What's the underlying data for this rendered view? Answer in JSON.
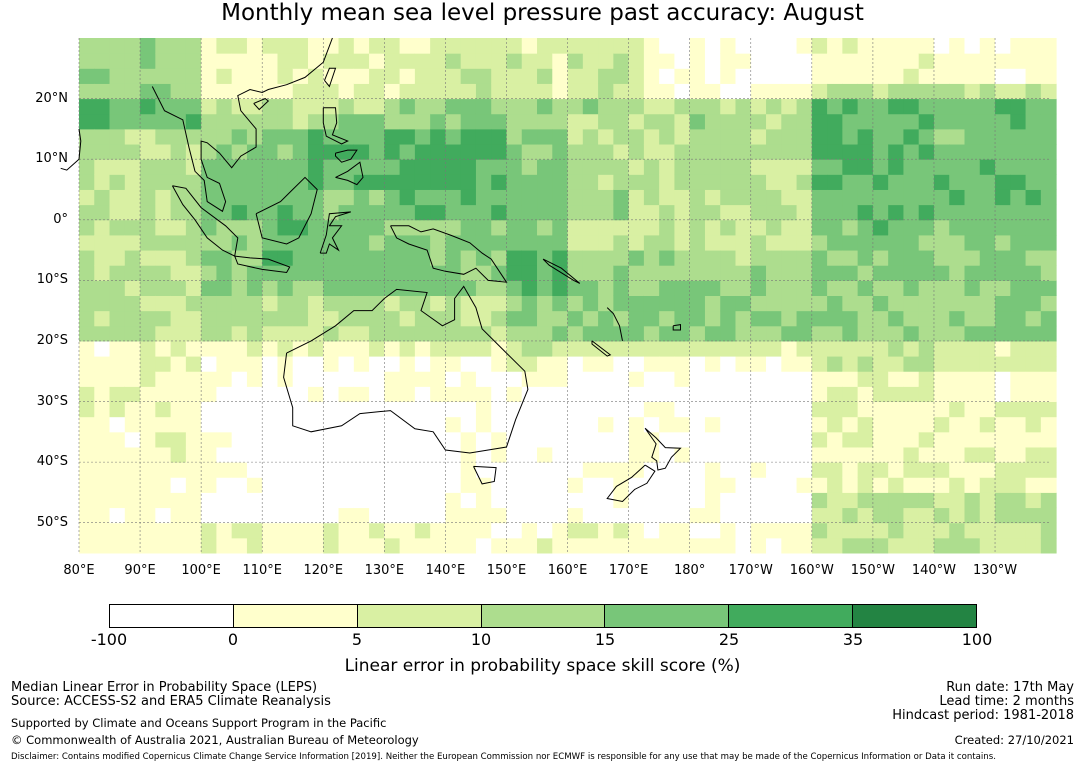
{
  "title": "Monthly mean sea level pressure past accuracy: August",
  "map": {
    "lat_labels": [
      "20°N",
      "10°N",
      "0°",
      "10°S",
      "20°S",
      "30°S",
      "40°S",
      "50°S"
    ],
    "lon_labels": [
      "80°E",
      "90°E",
      "100°E",
      "110°E",
      "120°E",
      "130°E",
      "140°E",
      "150°E",
      "160°E",
      "170°E",
      "180°",
      "170°W",
      "160°W",
      "150°W",
      "140°W",
      "130°W"
    ],
    "extent": {
      "lon_min": 80,
      "lon_max": 239,
      "lat_min": -55,
      "lat_max": 30
    },
    "grid": "on",
    "features": [
      "Indonesia",
      "Philippines",
      "Papua New Guinea",
      "Australia",
      "Tasmania",
      "New Zealand",
      "Pacific islands"
    ]
  },
  "colorbar": {
    "ticks": [
      "-100",
      "0",
      "5",
      "10",
      "15",
      "25",
      "35",
      "100"
    ],
    "colors": [
      "#ffffff",
      "#ffffcc",
      "#d9f0a3",
      "#addd8e",
      "#78c679",
      "#41ab5d",
      "#238443"
    ],
    "label": "Linear error in probability space skill score (%)"
  },
  "footer": {
    "left1": "Median Linear Error in Probability Space (LEPS)",
    "left2": "Source: ACCESS-S2 and ERA5 Climate Reanalysis",
    "left3": "Supported by Climate and Oceans Support Program in the Pacific",
    "left4": "© Commonwealth of Australia 2021, Australian Bureau of Meteorology",
    "right1": "Run date: 17th May",
    "right2": "Lead time: 2 months",
    "right3": "Hindcast period: 1981-2018",
    "right4": "Created: 27/10/2021",
    "disclaimer": "Disclaimer: Contains modified Copernicus Climate Change Service Information [2019]. Neither the European Commission nor ECMWF is responsible for any use that may be made of the Copernicus Information or Data it contains."
  }
}
